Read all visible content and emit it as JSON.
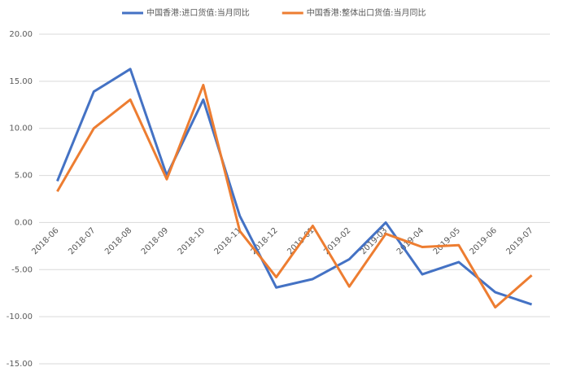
{
  "chart_data": {
    "type": "line",
    "categories": [
      "2018-06",
      "2018-07",
      "2018-08",
      "2018-09",
      "2018-10",
      "2018-11",
      "2018-12",
      "2019-01",
      "2019-02",
      "2019-03",
      "2019-04",
      "2019-05",
      "2019-06",
      "2019-07"
    ],
    "series": [
      {
        "name": "中国香港:进口货值:当月同比",
        "color": "#4472c4",
        "values": [
          4.4,
          13.9,
          16.3,
          5.0,
          13.05,
          0.7,
          -6.9,
          -6.0,
          -3.9,
          0.0,
          -5.5,
          -4.2,
          -7.4,
          -8.7
        ]
      },
      {
        "name": "中国香港:整体出口货值:当月同比",
        "color": "#ed7d31",
        "values": [
          3.3,
          10.0,
          13.05,
          4.6,
          14.6,
          -0.9,
          -5.8,
          -0.35,
          -6.8,
          -1.2,
          -2.6,
          -2.4,
          -9.0,
          -5.6
        ]
      }
    ],
    "ylim": [
      -15,
      20
    ],
    "yticks": [
      {
        "value": -15,
        "label": "-15.00"
      },
      {
        "value": -10,
        "label": "-10.00"
      },
      {
        "value": -5,
        "label": "-5.00"
      },
      {
        "value": 0,
        "label": "0.00"
      },
      {
        "value": 5,
        "label": "5.00"
      },
      {
        "value": 10,
        "label": "10.00"
      },
      {
        "value": 15,
        "label": "15.00"
      },
      {
        "value": 20,
        "label": "20.00"
      }
    ],
    "grid": true,
    "legend": "top"
  }
}
